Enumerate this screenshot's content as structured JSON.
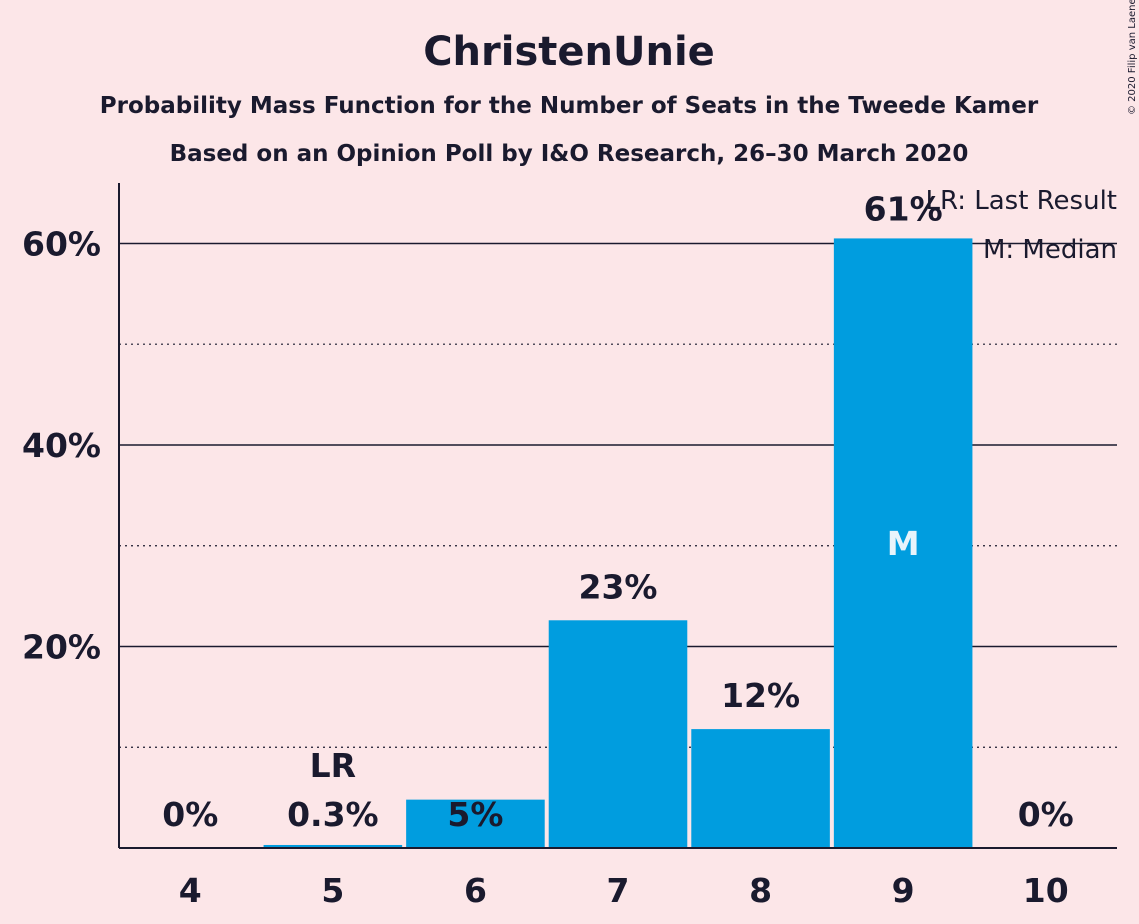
{
  "copyright": "© 2020 Filip van Laenen",
  "chart_data": {
    "type": "bar",
    "title": "ChristenUnie",
    "subtitle": "Probability Mass Function for the Number of Seats in the Tweede Kamer",
    "subtitle2": "Based on an Opinion Poll by I&O Research, 26–30 March 2020",
    "categories": [
      "4",
      "5",
      "6",
      "7",
      "8",
      "9",
      "10"
    ],
    "values": [
      0,
      0.3,
      4.8,
      22.6,
      11.8,
      60.5,
      0
    ],
    "value_labels": [
      "0%",
      "0.3%",
      "5%",
      "23%",
      "12%",
      "61%",
      "0%"
    ],
    "ylim": [
      0,
      66
    ],
    "yticks": [
      20,
      40,
      60
    ],
    "ytick_labels": [
      "20%",
      "40%",
      "60%"
    ],
    "minor_gridlines": [
      10,
      30,
      50
    ],
    "last_result": {
      "category": "5",
      "label": "LR"
    },
    "median": {
      "category": "9",
      "label": "M"
    },
    "legend": [
      "LR: Last Result",
      "M: Median"
    ],
    "bar_color": "#009ddf",
    "background_color": "#fce6e8"
  }
}
